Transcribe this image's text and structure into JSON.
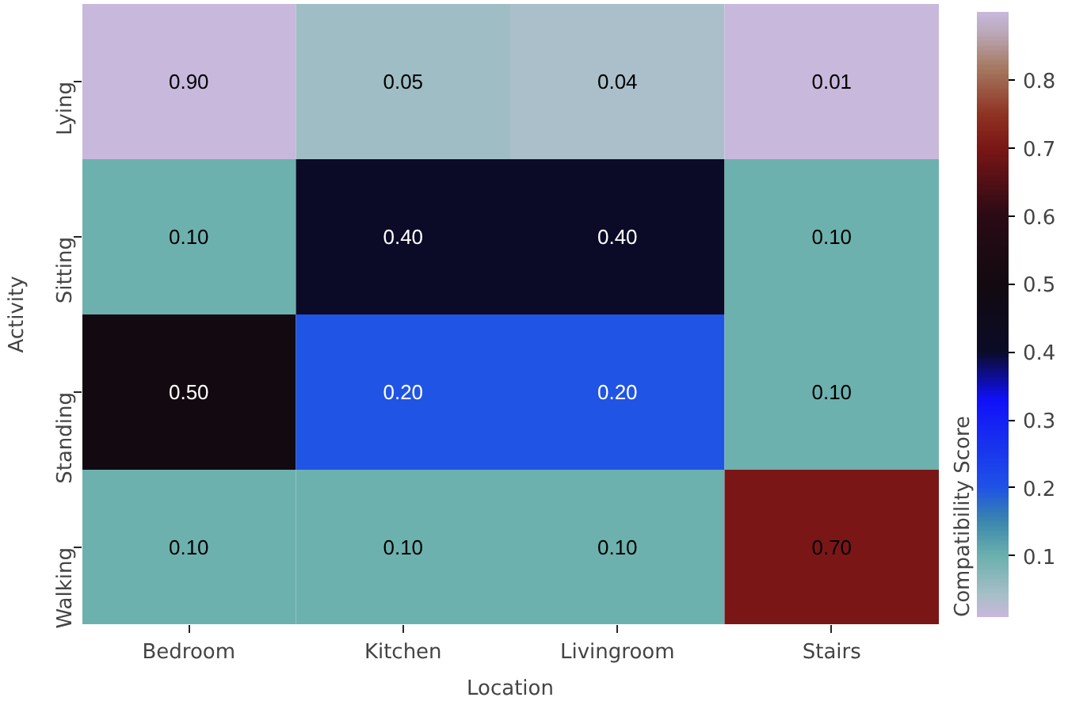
{
  "chart_data": {
    "type": "heatmap",
    "xlabel": "Location",
    "ylabel": "Activity",
    "clabel": "Compatibility Score",
    "categories": [
      "Bedroom",
      "Kitchen",
      "Livingroom",
      "Stairs"
    ],
    "y_categories": [
      "Lying",
      "Sitting",
      "Standing",
      "Walking"
    ],
    "cells": [
      [
        0.9,
        0.05,
        0.04,
        0.01
      ],
      [
        0.1,
        0.4,
        0.4,
        0.1
      ],
      [
        0.5,
        0.2,
        0.2,
        0.1
      ],
      [
        0.1,
        0.1,
        0.1,
        0.7
      ]
    ],
    "cell_labels": [
      [
        "0.90",
        "0.05",
        "0.04",
        "0.01"
      ],
      [
        "0.10",
        "0.40",
        "0.40",
        "0.10"
      ],
      [
        "0.50",
        "0.20",
        "0.20",
        "0.10"
      ],
      [
        "0.10",
        "0.10",
        "0.10",
        "0.70"
      ]
    ],
    "clim": [
      0.01,
      0.9
    ],
    "cticks": [
      0.1,
      0.2,
      0.3,
      0.4,
      0.5,
      0.6,
      0.7,
      0.8
    ]
  }
}
